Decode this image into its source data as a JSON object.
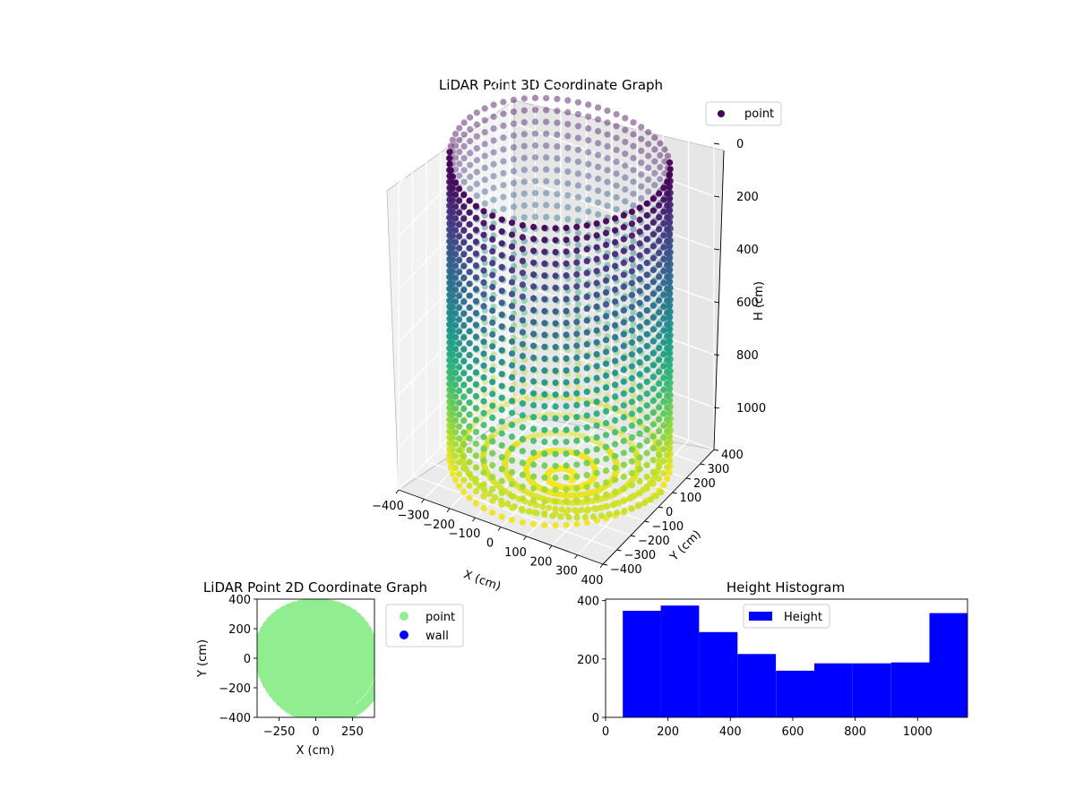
{
  "chart_data": [
    {
      "type": "scatter",
      "projection": "3d",
      "title": "LiDAR Point 3D Coordinate Graph",
      "xlabel": "X (cm)",
      "ylabel": "Y (cm)",
      "zlabel": "H (cm)",
      "x_ticks": [
        -400,
        -300,
        -200,
        -100,
        0,
        100,
        200,
        300,
        400
      ],
      "y_ticks": [
        -400,
        -300,
        -200,
        -100,
        0,
        100,
        200,
        300,
        400
      ],
      "z_ticks": [
        0,
        200,
        400,
        600,
        800,
        1000
      ],
      "xlim": [
        -400,
        400
      ],
      "ylim": [
        -400,
        400
      ],
      "zlim": [
        0,
        1160
      ],
      "z_inverted": true,
      "colormap": "viridis",
      "legend": [
        {
          "name": "point",
          "color": "#440154"
        }
      ],
      "legend_position": "top-right",
      "point_cloud": {
        "shape": "cylinder wall with spiral floor",
        "wall_radius": 380,
        "spiral_max_radius": 370,
        "spiral_turns": 5,
        "height_range": [
          0,
          1150
        ]
      }
    },
    {
      "type": "scatter",
      "title": "LiDAR Point 2D Coordinate Graph",
      "xlabel": "X (cm)",
      "ylabel": "Y (cm)",
      "x_ticks": [
        -250,
        0,
        250
      ],
      "y_ticks": [
        400,
        200,
        0,
        -200,
        -400
      ],
      "xlim": [
        -400,
        400
      ],
      "ylim": [
        -400,
        400
      ],
      "series": [
        {
          "name": "point",
          "color": "#90ee90"
        },
        {
          "name": "wall",
          "color": "#0000ff"
        }
      ],
      "legend_position": "outside-right"
    },
    {
      "type": "bar",
      "title": "Height Histogram",
      "x_ticks": [
        0,
        200,
        400,
        600,
        800,
        1000
      ],
      "y_ticks": [
        0,
        200,
        400
      ],
      "xlim": [
        0,
        1160
      ],
      "ylim": [
        0,
        405
      ],
      "series": [
        {
          "name": "Height",
          "color": "#0000ff"
        }
      ],
      "bins": [
        {
          "start": 55,
          "end": 177,
          "value": 365
        },
        {
          "start": 177,
          "end": 300,
          "value": 383
        },
        {
          "start": 300,
          "end": 423,
          "value": 292
        },
        {
          "start": 423,
          "end": 546,
          "value": 217
        },
        {
          "start": 546,
          "end": 669,
          "value": 160
        },
        {
          "start": 669,
          "end": 792,
          "value": 185
        },
        {
          "start": 792,
          "end": 915,
          "value": 185
        },
        {
          "start": 915,
          "end": 1038,
          "value": 188
        },
        {
          "start": 1038,
          "end": 1160,
          "value": 357
        }
      ],
      "legend_position": "top-center"
    }
  ]
}
